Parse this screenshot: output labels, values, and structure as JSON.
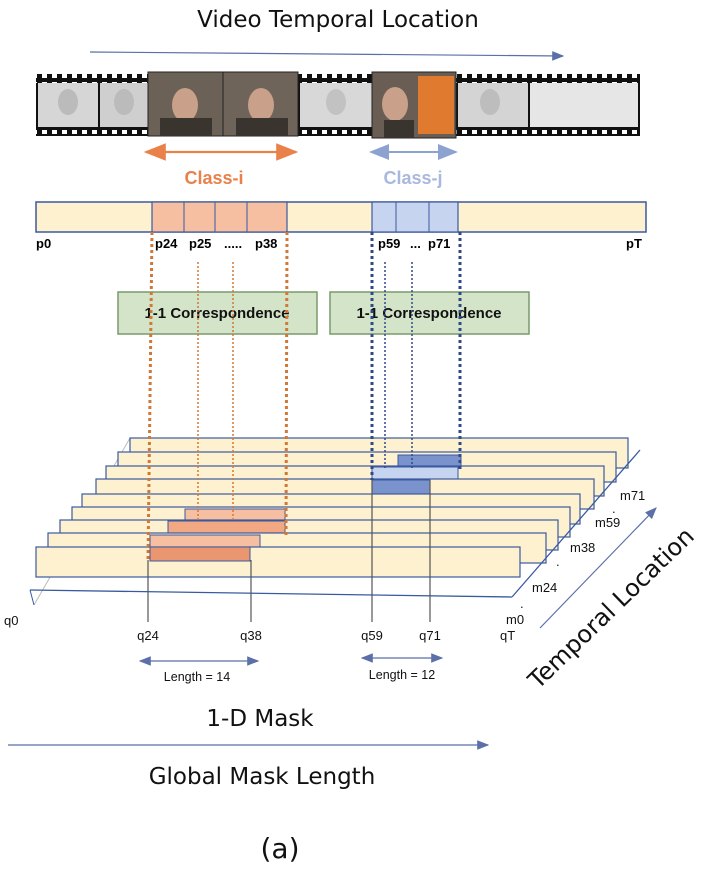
{
  "title": "Video Temporal Location",
  "class_i": "Class-i",
  "class_j": "Class-j",
  "p_labels": {
    "p0": "p0",
    "p24": "p24",
    "p25": "p25",
    "dots1": ".....",
    "p38": "p38",
    "p59": "p59",
    "dots2": "...",
    "p71": "p71",
    "pT": "pT"
  },
  "correspondence_left": "1-1 Correspondence",
  "correspondence_right": "1-1 Correspondence",
  "m_labels": {
    "m71": "m71",
    "dots_a": ".",
    "m59": "m59",
    "m38": "m38",
    "dots_b": ".",
    "m24": "m24",
    "dots_c": ".",
    "m0": "m0",
    "qT": "qT"
  },
  "q_labels": {
    "q0": "q0",
    "q24": "q24",
    "q38": "q38",
    "q59": "q59",
    "q71": "q71"
  },
  "length_i": "Length = 14",
  "length_j": "Length = 12",
  "temporal_location": "Temporal Location",
  "mask_label": "1-D Mask",
  "global_mask_length": "Global Mask Length",
  "caption": "(a)",
  "colors": {
    "orange": "#e8824a",
    "blue": "#7b93cc",
    "arrow_blue": "#5b6fa8",
    "bar_yellow": "#fdf1cf",
    "bar_border": "#3a5aa0",
    "green_box": "#d4e4c8",
    "green_border": "#7a9a6a",
    "salmon": "#f6bfa1",
    "light_blue": "#c6d4ef"
  }
}
